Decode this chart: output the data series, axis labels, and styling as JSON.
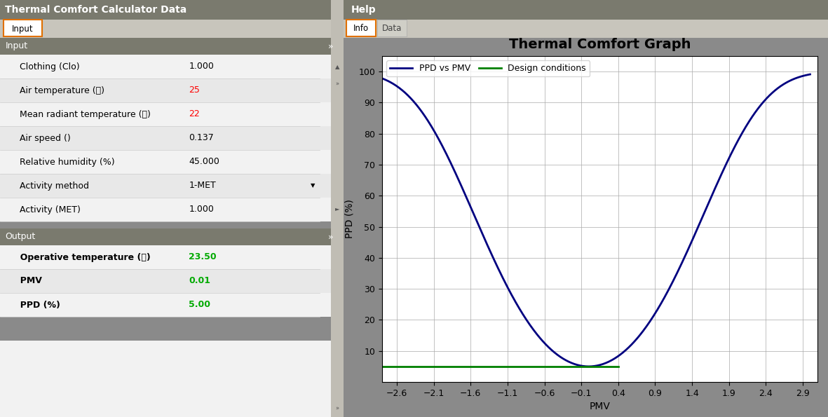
{
  "title_left": "Thermal Comfort Calculator Data",
  "tab_input": "Input",
  "section_input": "Input",
  "section_output": "Output",
  "input_rows": [
    {
      "label": "  Clothing (Clo)",
      "value": "1.000",
      "color": "black"
    },
    {
      "label": "  Air temperature (溫)",
      "value": "25",
      "color": "red"
    },
    {
      "label": "  Mean radiant temperature (溫)",
      "value": "22",
      "color": "red"
    },
    {
      "label": "  Air speed ()",
      "value": "0.137",
      "color": "black"
    },
    {
      "label": "  Relative humidity (%)",
      "value": "45.000",
      "color": "black"
    },
    {
      "label": "  Activity method",
      "value": "1-MET",
      "color": "black"
    },
    {
      "label": "  Activity (MET)",
      "value": "1.000",
      "color": "black"
    }
  ],
  "output_rows": [
    {
      "label": "  Operative temperature (溫)",
      "value": "23.50",
      "color": "#00aa00"
    },
    {
      "label": "  PMV",
      "value": "0.01",
      "color": "#00aa00"
    },
    {
      "label": "  PPD (%)",
      "value": "5.00",
      "color": "#00aa00"
    }
  ],
  "title_right": "Help",
  "tab_info": "Info",
  "tab_data": "Data",
  "chart_title": "Thermal Comfort Graph",
  "legend_ppd": "PPD vs PMV",
  "legend_design": "Design conditions",
  "xlabel": "PMV",
  "ylabel": "PPD (%)",
  "xlim": [
    -2.8,
    3.1
  ],
  "ylim": [
    0,
    105
  ],
  "xticks": [
    -2.6,
    -2.1,
    -1.6,
    -1.1,
    -0.6,
    -0.1,
    0.4,
    0.9,
    1.4,
    1.9,
    2.4,
    2.9
  ],
  "yticks": [
    10,
    20,
    30,
    40,
    50,
    60,
    70,
    80,
    90,
    100
  ],
  "ppd_color": "#000080",
  "design_color": "#008000",
  "design_pmv_end": 0.4,
  "design_ppd": 5.0,
  "bg_main": "#8a8a8a",
  "bg_panel_left": "#d6d3ca",
  "bg_panel_right": "#d6d3ca",
  "header_color": "#7a7a6e",
  "row_light": "#f2f2f2",
  "row_dark": "#e8e8e8",
  "tab_bar_color": "#c8c5bc",
  "scrollbar_color": "#c0bdb4"
}
